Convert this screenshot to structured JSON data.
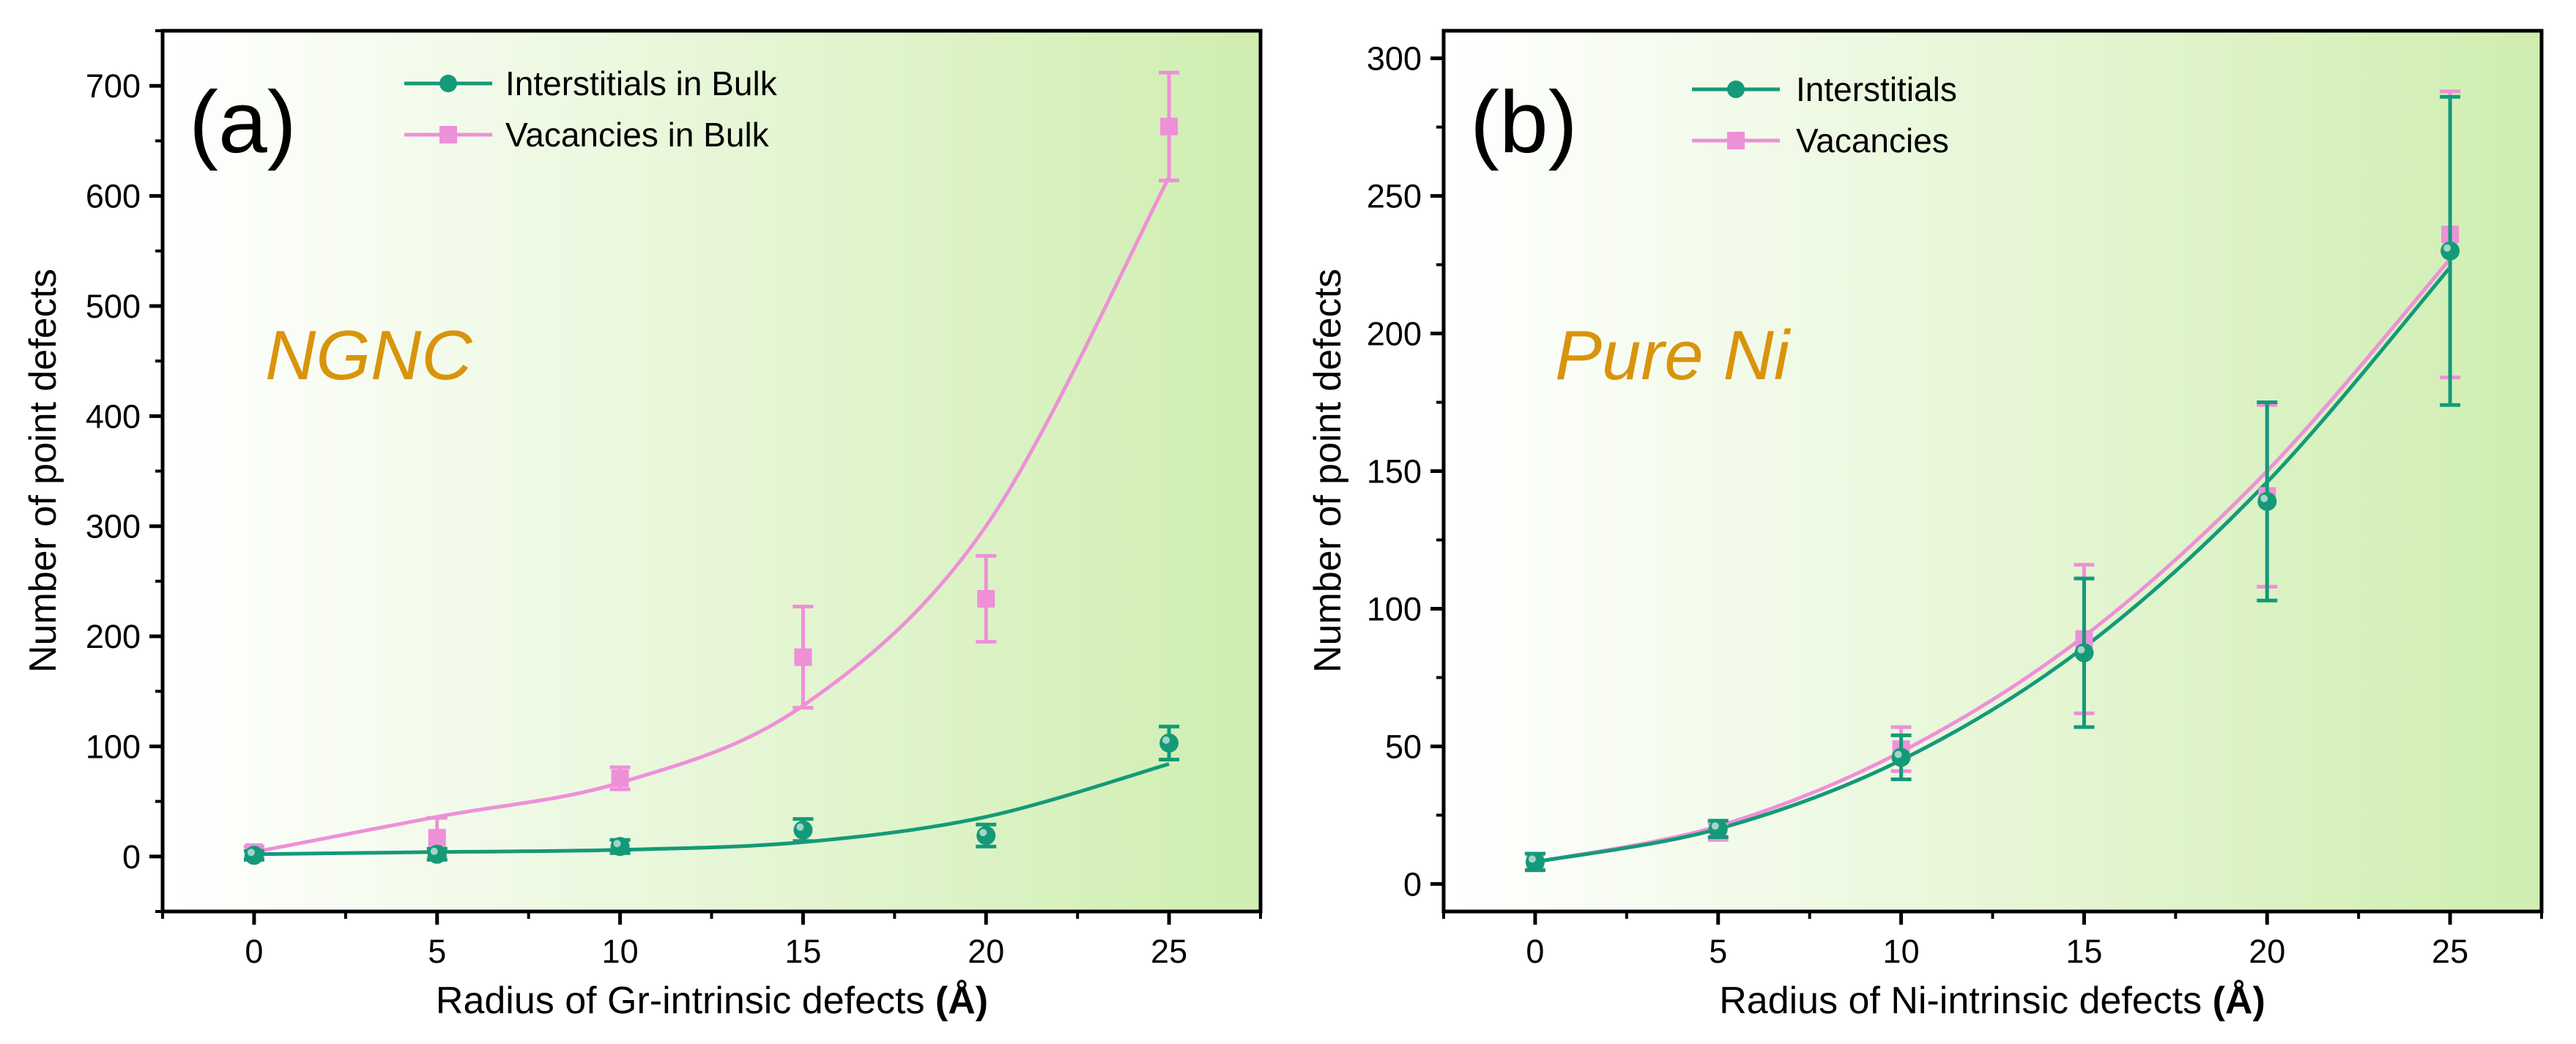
{
  "colors": {
    "interstitial": "#149a78",
    "vacancy": "#ee90d8",
    "annotation": "#d9940c",
    "gradient_start": "#ffffff",
    "gradient_end": "#cfeeb0"
  },
  "chart_data": [
    {
      "type": "line",
      "panel_label": "(a)",
      "annotation": "NGNC",
      "xlabel_main": "Radius of Gr-intrinsic defects ",
      "xlabel_unit": "(Å)",
      "ylabel": "Number of point defects",
      "xlim": [
        -2.5,
        27.5
      ],
      "ylim": [
        -50,
        750
      ],
      "xticks": [
        0,
        5,
        10,
        15,
        20,
        25
      ],
      "yticks": [
        0,
        100,
        200,
        300,
        400,
        500,
        600,
        700
      ],
      "grid": false,
      "legend_position": "top-center",
      "series": [
        {
          "name": "Interstitials in Bulk",
          "marker": "circle",
          "x": [
            0,
            5,
            10,
            15,
            20,
            25
          ],
          "y": [
            1,
            2,
            9,
            24,
            19,
            103
          ],
          "error": [
            4,
            5,
            6,
            10,
            10,
            15
          ],
          "fit": "exponential",
          "fit_values": [
            2,
            4,
            6,
            13,
            36,
            84
          ]
        },
        {
          "name": "Vacancies in Bulk",
          "marker": "square",
          "x": [
            0,
            5,
            10,
            15,
            20,
            25
          ],
          "y": [
            4,
            17,
            71,
            181,
            234,
            663
          ],
          "error": [
            5,
            18,
            10,
            46,
            39,
            49
          ],
          "fit": "exponential",
          "fit_values": [
            4,
            36,
            67,
            137,
            300,
            617
          ]
        }
      ]
    },
    {
      "type": "line",
      "panel_label": "(b)",
      "annotation": "Pure Ni",
      "xlabel_main": "Radius of Ni-intrinsic defects ",
      "xlabel_unit": "(Å)",
      "ylabel": "Number of point defects",
      "xlim": [
        -2.5,
        27.5
      ],
      "ylim": [
        -10,
        310
      ],
      "xticks": [
        0,
        5,
        10,
        15,
        20,
        25
      ],
      "yticks": [
        0,
        50,
        100,
        150,
        200,
        250,
        300
      ],
      "grid": false,
      "legend_position": "top-left",
      "series": [
        {
          "name": "Interstitials",
          "marker": "circle",
          "x": [
            0,
            5,
            10,
            15,
            20,
            25
          ],
          "y": [
            8,
            20,
            46,
            84,
            139,
            230
          ],
          "error": [
            3,
            3,
            8,
            27,
            36,
            56
          ],
          "fit": "polynomial",
          "fit_values": [
            8,
            20,
            45,
            86,
            146,
            224
          ]
        },
        {
          "name": "Vacancies",
          "marker": "square",
          "x": [
            0,
            5,
            10,
            15,
            20,
            25
          ],
          "y": [
            8,
            19,
            49,
            89,
            141,
            236
          ],
          "error": [
            3,
            3,
            8,
            27,
            33,
            52
          ],
          "fit": "polynomial",
          "fit_values": [
            8,
            21,
            48,
            90,
            150,
            227
          ]
        }
      ]
    }
  ]
}
